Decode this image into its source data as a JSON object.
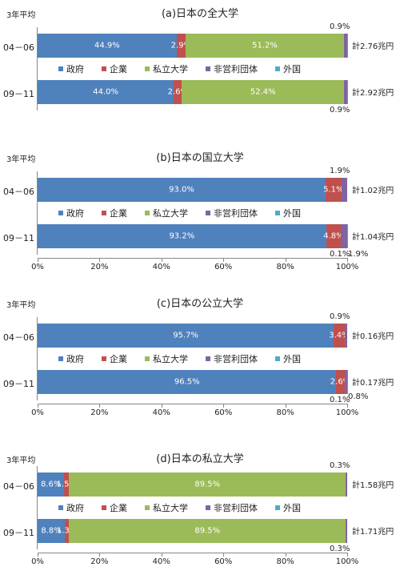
{
  "legend": [
    {
      "label": "政府",
      "color": "#4f81bd"
    },
    {
      "label": "企業",
      "color": "#c0504d"
    },
    {
      "label": "私立大学",
      "color": "#9bbb59"
    },
    {
      "label": "非営利団体",
      "color": "#8064a2"
    },
    {
      "label": "外国",
      "color": "#4bacc6"
    }
  ],
  "period_label": "3年平均",
  "x_ticks": [
    "0%",
    "20%",
    "40%",
    "60%",
    "80%",
    "100%"
  ],
  "chart_data": [
    {
      "type": "bar",
      "orientation": "horizontal",
      "stacked": true,
      "title": "(a)日本の全大学",
      "categories": [
        "04－06",
        "09－11"
      ],
      "series": [
        {
          "name": "政府",
          "values": [
            44.9,
            44.0
          ],
          "labels": [
            "44.9%",
            "44.0%"
          ]
        },
        {
          "name": "企業",
          "values": [
            2.9,
            2.6
          ],
          "labels": [
            "2.9%",
            "2.6%"
          ]
        },
        {
          "name": "私立大学",
          "values": [
            51.2,
            52.4
          ],
          "labels": [
            "51.2%",
            "52.4%"
          ]
        },
        {
          "name": "非営利団体",
          "values": [
            0.9,
            0.9
          ],
          "labels": [
            "0.9%",
            "0.9%"
          ]
        },
        {
          "name": "外国",
          "values": [
            0.1,
            0.1
          ],
          "labels": [
            "",
            ""
          ]
        }
      ],
      "totals": [
        "計2.76兆円",
        "計2.92兆円"
      ],
      "xlim": [
        0,
        100
      ],
      "show_axis": false
    },
    {
      "type": "bar",
      "orientation": "horizontal",
      "stacked": true,
      "title": "(b)日本の国立大学",
      "categories": [
        "04－06",
        "09－11"
      ],
      "series": [
        {
          "name": "政府",
          "values": [
            93.0,
            93.2
          ],
          "labels": [
            "93.0%",
            "93.2%"
          ]
        },
        {
          "name": "企業",
          "values": [
            5.1,
            4.8
          ],
          "labels": [
            "5.1%",
            "4.8%"
          ]
        },
        {
          "name": "私立大学",
          "values": [
            0.0,
            0.0
          ],
          "labels": [
            "",
            ""
          ]
        },
        {
          "name": "非営利団体",
          "values": [
            1.9,
            1.9
          ],
          "labels": [
            "1.9%",
            "1.9%"
          ]
        },
        {
          "name": "外国",
          "values": [
            0.0,
            0.1
          ],
          "labels": [
            "",
            "0.1%"
          ]
        }
      ],
      "totals": [
        "計1.02兆円",
        "計1.04兆円"
      ],
      "xlim": [
        0,
        100
      ],
      "show_axis": true
    },
    {
      "type": "bar",
      "orientation": "horizontal",
      "stacked": true,
      "title": "(c)日本の公立大学",
      "categories": [
        "04－06",
        "09－11"
      ],
      "series": [
        {
          "name": "政府",
          "values": [
            95.7,
            96.5
          ],
          "labels": [
            "95.7%",
            "96.5%"
          ]
        },
        {
          "name": "企業",
          "values": [
            3.4,
            2.6
          ],
          "labels": [
            "3.4%",
            "2.6%"
          ]
        },
        {
          "name": "私立大学",
          "values": [
            0.0,
            0.0
          ],
          "labels": [
            "",
            ""
          ]
        },
        {
          "name": "非営利団体",
          "values": [
            0.9,
            0.8
          ],
          "labels": [
            "0.9%",
            "0.8%"
          ]
        },
        {
          "name": "外国",
          "values": [
            0.0,
            0.1
          ],
          "labels": [
            "",
            "0.1%"
          ]
        }
      ],
      "totals": [
        "計0.16兆円",
        "計0.17兆円"
      ],
      "xlim": [
        0,
        100
      ],
      "show_axis": true
    },
    {
      "type": "bar",
      "orientation": "horizontal",
      "stacked": true,
      "title": "(d)日本の私立大学",
      "categories": [
        "04－06",
        "09－11"
      ],
      "series": [
        {
          "name": "政府",
          "values": [
            8.6,
            8.8
          ],
          "labels": [
            "8.6%",
            "8.8%"
          ]
        },
        {
          "name": "企業",
          "values": [
            1.5,
            1.3
          ],
          "labels": [
            "1.5%",
            "1.3%"
          ]
        },
        {
          "name": "私立大学",
          "values": [
            89.5,
            89.5
          ],
          "labels": [
            "89.5%",
            "89.5%"
          ]
        },
        {
          "name": "非営利団体",
          "values": [
            0.3,
            0.3
          ],
          "labels": [
            "0.3%",
            "0.3%"
          ]
        },
        {
          "name": "外国",
          "values": [
            0.0,
            0.0
          ],
          "labels": [
            "",
            ""
          ]
        }
      ],
      "totals": [
        "計1.58兆円",
        "計1.71兆円"
      ],
      "xlim": [
        0,
        100
      ],
      "show_axis": true
    }
  ]
}
